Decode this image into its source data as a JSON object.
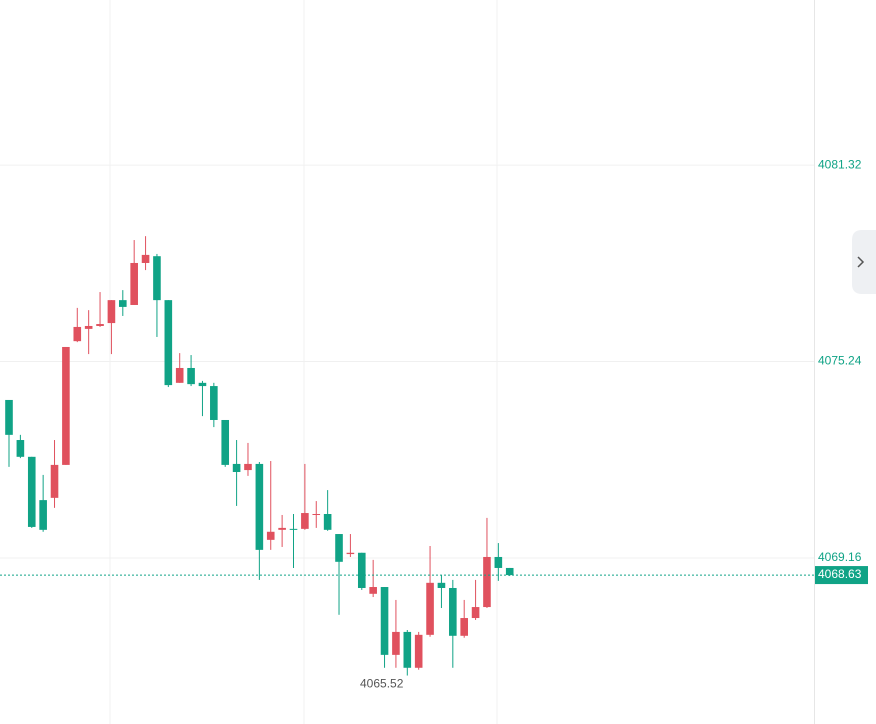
{
  "chart_data": {
    "type": "candlestick",
    "open": [
      4074.05,
      4072.81,
      4072.29,
      4070.95,
      4071.02,
      4072.04,
      4075.87,
      4076.25,
      4076.34,
      4076.43,
      4077.14,
      4076.99,
      4078.29,
      4078.5,
      4077.14,
      4074.58,
      4075.04,
      4074.58,
      4074.48,
      4073.43,
      4072.07,
      4071.88,
      4072.07,
      4069.72,
      4070.03,
      4070.06,
      4070.06,
      4070.49,
      4070.52,
      4069.9,
      4069.28,
      4069.32,
      4068.05,
      4068.26,
      4066.16,
      4066.87,
      4065.76,
      4066.78,
      4068.39,
      4068.23,
      4066.75,
      4067.3,
      4067.64,
      4069.19,
      4068.85
    ],
    "high": [
      4074.05,
      4072.97,
      4072.29,
      4071.73,
      4072.81,
      4075.69,
      4076.9,
      4076.83,
      4077.39,
      4077.14,
      4077.45,
      4079.0,
      4079.12,
      4078.57,
      4077.14,
      4075.5,
      4075.44,
      4074.64,
      4074.58,
      4073.43,
      4072.81,
      4072.72,
      4072.13,
      4072.16,
      4070.49,
      4070.52,
      4072.07,
      4070.92,
      4071.26,
      4069.9,
      4069.9,
      4069.32,
      4069.1,
      4068.26,
      4067.86,
      4066.93,
      4066.87,
      4069.53,
      4068.63,
      4068.48,
      4067.86,
      4068.48,
      4070.4,
      4069.62,
      4068.85
    ],
    "low": [
      4071.98,
      4072.25,
      4070.09,
      4069.97,
      4070.71,
      4072.04,
      4075.84,
      4075.47,
      4076.31,
      4075.47,
      4076.65,
      4076.99,
      4078.07,
      4076.0,
      4074.45,
      4074.58,
      4074.48,
      4073.55,
      4073.21,
      4071.98,
      4070.77,
      4071.7,
      4068.48,
      4069.41,
      4069.5,
      4068.85,
      4070.03,
      4070.09,
      4070.0,
      4067.4,
      4069.19,
      4068.17,
      4067.95,
      4065.76,
      4065.76,
      4065.52,
      4065.7,
      4066.72,
      4067.61,
      4065.76,
      4066.69,
      4067.24,
      4067.61,
      4068.45,
      4068.6
    ],
    "close": [
      4072.97,
      4072.29,
      4070.12,
      4070.03,
      4072.04,
      4075.69,
      4076.31,
      4076.34,
      4076.4,
      4077.14,
      4076.93,
      4078.29,
      4078.54,
      4077.14,
      4074.51,
      4075.04,
      4074.54,
      4074.48,
      4073.43,
      4072.04,
      4071.82,
      4072.07,
      4069.41,
      4069.97,
      4070.09,
      4070.03,
      4070.55,
      4070.52,
      4070.03,
      4069.04,
      4069.32,
      4068.23,
      4068.26,
      4066.16,
      4066.87,
      4065.76,
      4066.78,
      4068.39,
      4068.23,
      4066.75,
      4067.3,
      4067.64,
      4069.19,
      4068.85,
      4068.63
    ],
    "up_color": "#e0515e",
    "down_color": "#10a386",
    "ylim": [
      4064.02,
      4086.43
    ],
    "yticks": [
      4069.16,
      4075.24,
      4081.32
    ],
    "grid": true,
    "last_price": 4068.63,
    "low_label": 4065.52
  }
}
